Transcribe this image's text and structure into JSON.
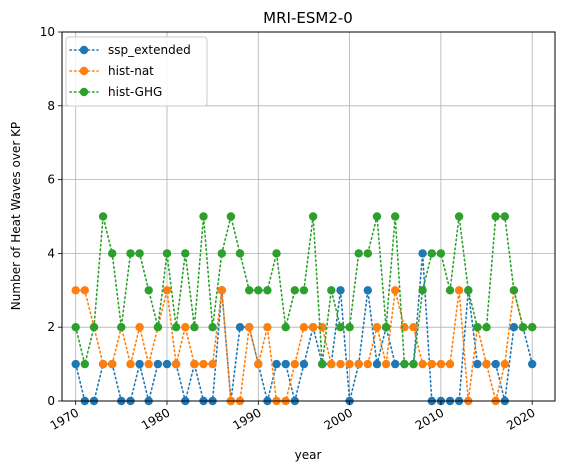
{
  "chart_data": {
    "type": "line",
    "title": "MRI-ESM2-0",
    "xlabel": "year",
    "ylabel": "Number of Heat Waves over KP",
    "xlim": [
      1968.5,
      2022.5
    ],
    "ylim": [
      0,
      10
    ],
    "xticks": [
      1970,
      1980,
      1990,
      2000,
      2010,
      2020
    ],
    "yticks": [
      0,
      2,
      4,
      6,
      8,
      10
    ],
    "grid": true,
    "legend_position": "top-left",
    "x": [
      1970,
      1971,
      1972,
      1973,
      1974,
      1975,
      1976,
      1977,
      1978,
      1979,
      1980,
      1981,
      1982,
      1983,
      1984,
      1985,
      1986,
      1987,
      1988,
      1989,
      1990,
      1991,
      1992,
      1993,
      1994,
      1995,
      1996,
      1997,
      1998,
      1999,
      2000,
      2001,
      2002,
      2003,
      2004,
      2005,
      2006,
      2007,
      2008,
      2009,
      2010,
      2011,
      2012,
      2013,
      2014,
      2015,
      2016,
      2017,
      2018,
      2019,
      2020
    ],
    "series": [
      {
        "name": "ssp_extended",
        "color": "#1f77b4",
        "values": [
          1,
          0,
          0,
          1,
          1,
          0,
          0,
          1,
          0,
          1,
          1,
          1,
          0,
          1,
          0,
          0,
          3,
          0,
          2,
          2,
          1,
          0,
          1,
          1,
          0,
          1,
          2,
          1,
          1,
          3,
          0,
          1,
          3,
          1,
          2,
          1,
          1,
          1,
          4,
          0,
          0,
          0,
          0,
          3,
          1,
          1,
          1,
          0,
          2,
          2,
          1
        ]
      },
      {
        "name": "hist-nat",
        "color": "#ff7f0e",
        "values": [
          3,
          3,
          2,
          1,
          1,
          2,
          1,
          2,
          1,
          2,
          3,
          1,
          2,
          1,
          1,
          1,
          3,
          0,
          0,
          2,
          1,
          2,
          0,
          0,
          1,
          2,
          2,
          2,
          1,
          1,
          1,
          1,
          1,
          2,
          1,
          3,
          2,
          2,
          1,
          1,
          1,
          1,
          3,
          0,
          2,
          1,
          0,
          1,
          3,
          2,
          2
        ]
      },
      {
        "name": "hist-GHG",
        "color": "#2ca02c",
        "values": [
          2,
          1,
          2,
          5,
          4,
          2,
          4,
          4,
          3,
          2,
          4,
          2,
          4,
          2,
          5,
          2,
          4,
          5,
          4,
          3,
          3,
          3,
          4,
          2,
          3,
          3,
          5,
          1,
          3,
          2,
          2,
          4,
          4,
          5,
          2,
          5,
          1,
          1,
          3,
          4,
          4,
          3,
          5,
          3,
          2,
          2,
          5,
          5,
          3,
          2,
          2
        ]
      }
    ]
  }
}
